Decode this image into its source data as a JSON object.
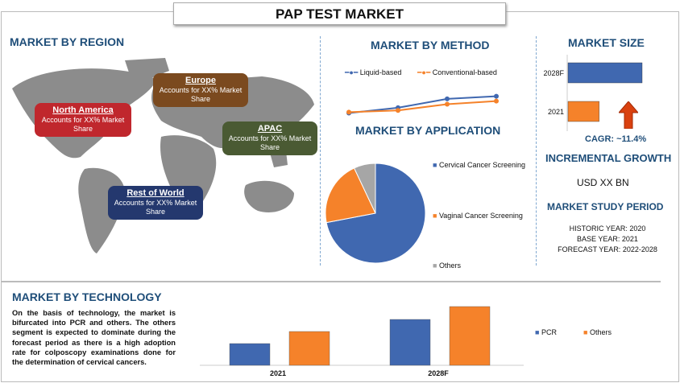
{
  "title": "PAP TEST MARKET",
  "region": {
    "heading": "MARKET BY REGION",
    "bubbles": [
      {
        "name": "North America",
        "text": "Accounts for XX% Market Share",
        "color": "#c0272d"
      },
      {
        "name": "Europe",
        "text": "Accounts for XX% Market Share",
        "color": "#7b4a1f"
      },
      {
        "name": "APAC",
        "text": "Accounts for XX% Market Share",
        "color": "#4a5a33"
      },
      {
        "name": "Rest of World",
        "text": "Accounts for XX% Market Share",
        "color": "#24386e"
      }
    ]
  },
  "method": {
    "heading": "MARKET BY METHOD"
  },
  "application": {
    "heading": "MARKET BY APPLICATION"
  },
  "size": {
    "heading": "MARKET SIZE",
    "cagr": "CAGR:  ~11.4%",
    "incremental_heading": "INCREMENTAL GROWTH",
    "incremental_value": "USD XX BN",
    "study_heading": "MARKET STUDY PERIOD",
    "historic": "HISTORIC YEAR: 2020",
    "base": "BASE YEAR: 2021",
    "forecast": "FORECAST YEAR: 2022-2028"
  },
  "technology": {
    "heading": "MARKET BY TECHNOLOGY",
    "text": "On the basis of technology, the market is bifurcated into PCR and others. The others segment is expected to dominate during the forecast period as there is a high adoption rate for colposcopy examinations done for the determination of cervical cancers."
  },
  "colors": {
    "blue": "#4068b0",
    "orange": "#f5822a",
    "gray": "#a6a6a6",
    "heading": "#1f4e79"
  },
  "chart_data": [
    {
      "type": "line",
      "series": [
        {
          "name": "Liquid-based",
          "values": [
            1,
            2.2,
            4.2,
            4.8
          ],
          "color": "#4068b0"
        },
        {
          "name": "Conventional-based",
          "values": [
            1.2,
            1.6,
            3,
            3.7
          ],
          "color": "#f5822a"
        }
      ],
      "legend": "top"
    },
    {
      "type": "pie",
      "categories": [
        "Cervical Cancer Screening",
        "Vaginal Cancer Screening",
        "Others"
      ],
      "values": [
        72,
        21,
        7
      ],
      "colors": [
        "#4068b0",
        "#f5822a",
        "#a6a6a6"
      ],
      "legend": "right"
    },
    {
      "type": "bar",
      "orientation": "horizontal",
      "categories": [
        "2028F",
        "2021"
      ],
      "values": [
        100,
        42
      ],
      "colors": [
        "#4068b0",
        "#f5822a"
      ]
    },
    {
      "type": "bar",
      "categories": [
        "2021",
        "2028F"
      ],
      "series": [
        {
          "name": "PCR",
          "values": [
            27,
            57
          ],
          "color": "#4068b0"
        },
        {
          "name": "Others",
          "values": [
            42,
            73
          ],
          "color": "#f5822a"
        }
      ],
      "legend": "right"
    }
  ]
}
